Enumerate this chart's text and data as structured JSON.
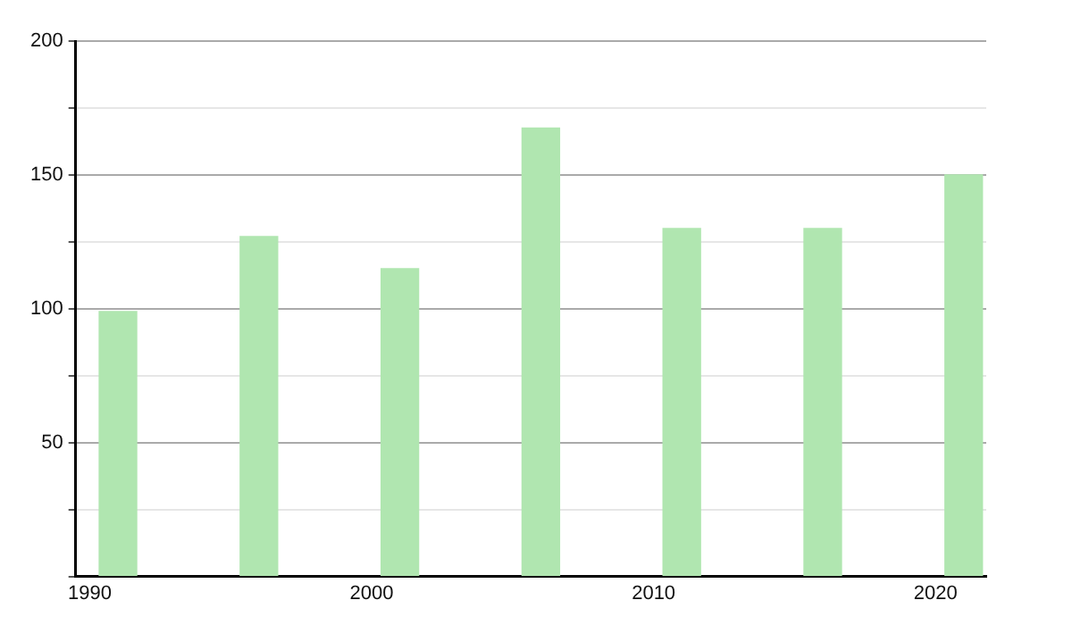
{
  "chart_data": {
    "type": "bar",
    "x": [
      1991,
      1996,
      2001,
      2006,
      2011,
      2016,
      2021
    ],
    "values": [
      99,
      127,
      115,
      167.5,
      130,
      130,
      150
    ],
    "color": "#b0e6b0",
    "xlim": [
      1989.5,
      2021.8
    ],
    "xticks": [
      1990,
      2000,
      2010,
      2020
    ],
    "ylim": [
      0,
      200
    ],
    "yticks": [
      {
        "value": 0,
        "label": null
      },
      {
        "value": 25,
        "label": null
      },
      50,
      {
        "value": 75,
        "label": null
      },
      100,
      {
        "value": 125,
        "label": null
      },
      150,
      {
        "value": 175,
        "label": null
      },
      200
    ],
    "grid": "y"
  }
}
